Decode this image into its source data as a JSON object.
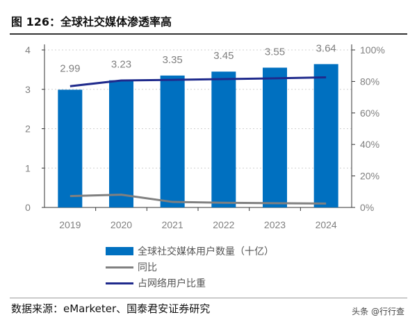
{
  "title": "图 126：全球社交媒体渗透率高",
  "source": "数据来源：eMarketer、国泰君安证券研究",
  "watermark": "头条 @行行查",
  "colors": {
    "bars": "#0070C0",
    "yoy": "#808080",
    "penetration": "#1F2A8C"
  },
  "chart_data": {
    "type": "bar+line",
    "categories": [
      "2019",
      "2020",
      "2021",
      "2022",
      "2023",
      "2024"
    ],
    "left_axis": {
      "ylim": [
        0,
        4
      ],
      "ticks": [
        "0",
        "1",
        "2",
        "3",
        "4"
      ]
    },
    "right_axis": {
      "ylim": [
        0,
        100
      ],
      "ticks": [
        "0%",
        "20%",
        "40%",
        "60%",
        "80%",
        "100%"
      ]
    },
    "grid": "dotted horizontal",
    "legend_position": "bottom",
    "series": [
      {
        "name": "全球社交媒体用户数量（十亿）",
        "type": "bar",
        "axis": "left",
        "values": [
          2.99,
          3.23,
          3.35,
          3.45,
          3.55,
          3.64
        ],
        "labels": [
          "2.99",
          "3.23",
          "3.35",
          "3.45",
          "3.55",
          "3.64"
        ]
      },
      {
        "name": "同比",
        "type": "line",
        "axis": "right",
        "values": [
          7.2,
          8.1,
          3.5,
          3.0,
          2.7,
          2.5
        ]
      },
      {
        "name": "占网络用户比重",
        "type": "line",
        "axis": "right",
        "values": [
          77.0,
          80.6,
          81.0,
          81.5,
          82.0,
          82.6
        ]
      }
    ]
  }
}
